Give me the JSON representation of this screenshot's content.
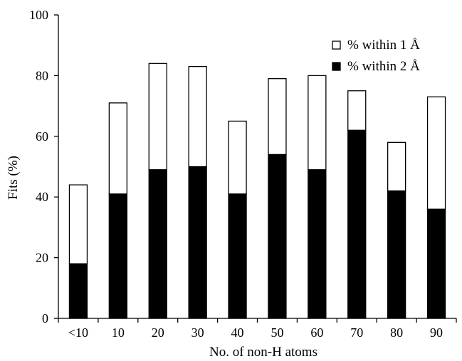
{
  "chart_data": {
    "type": "bar",
    "stacked": true,
    "categories": [
      "<10",
      "10",
      "20",
      "30",
      "40",
      "50",
      "60",
      "70",
      "80",
      "90"
    ],
    "series": [
      {
        "name": "% within 2 Å",
        "color": "#000000",
        "values": [
          18,
          41,
          49,
          50,
          41,
          54,
          49,
          62,
          42,
          36
        ]
      },
      {
        "name": "% within 1 Å",
        "color": "#ffffff",
        "values": [
          26,
          30,
          35,
          33,
          24,
          25,
          31,
          13,
          16,
          37
        ]
      }
    ],
    "xlabel": "No. of non-H atoms",
    "ylabel": "Fits (%)",
    "ylim": [
      0,
      100
    ],
    "yticks": [
      "0",
      "20",
      "40",
      "60",
      "80",
      "100"
    ],
    "legend": {
      "placement": "top-right",
      "order": [
        "% within 1 Å",
        "% within 2 Å"
      ]
    },
    "grid": false
  }
}
